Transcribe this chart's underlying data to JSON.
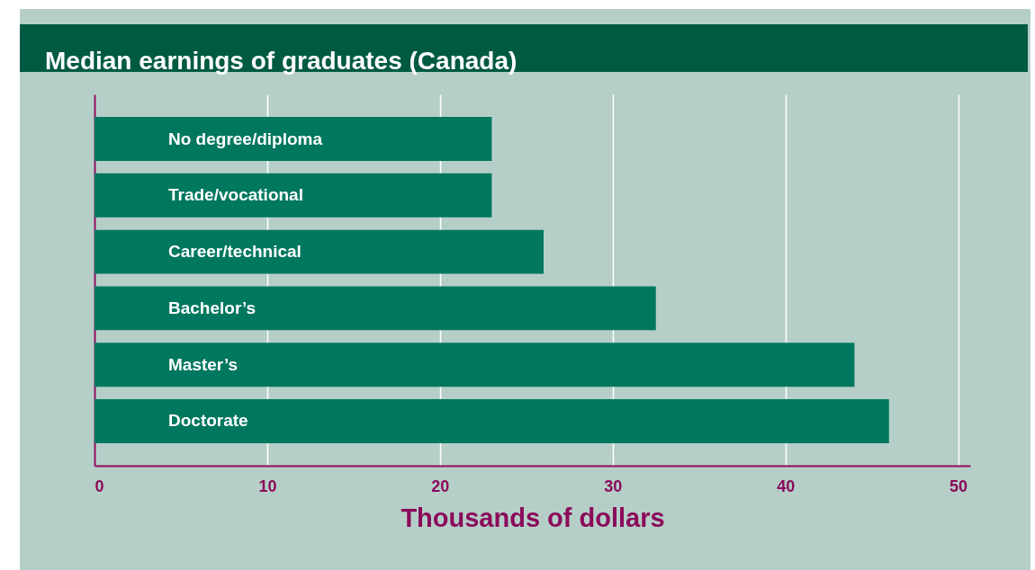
{
  "chart_data": {
    "type": "bar",
    "title": "Median earnings of graduates (Canada)",
    "xlabel": "Thousands of dollars",
    "orientation": "horizontal",
    "categories": [
      "No degree/diploma",
      "Trade/vocational",
      "Career/technical",
      "Bachelor’s",
      "Master’s",
      "Doctorate"
    ],
    "values": [
      23,
      23,
      26,
      32.5,
      44,
      46
    ],
    "color": "#00775f",
    "xlim": [
      0,
      50.7
    ],
    "xticks": [
      0,
      10,
      20,
      30,
      40,
      50
    ],
    "grid": "x"
  }
}
